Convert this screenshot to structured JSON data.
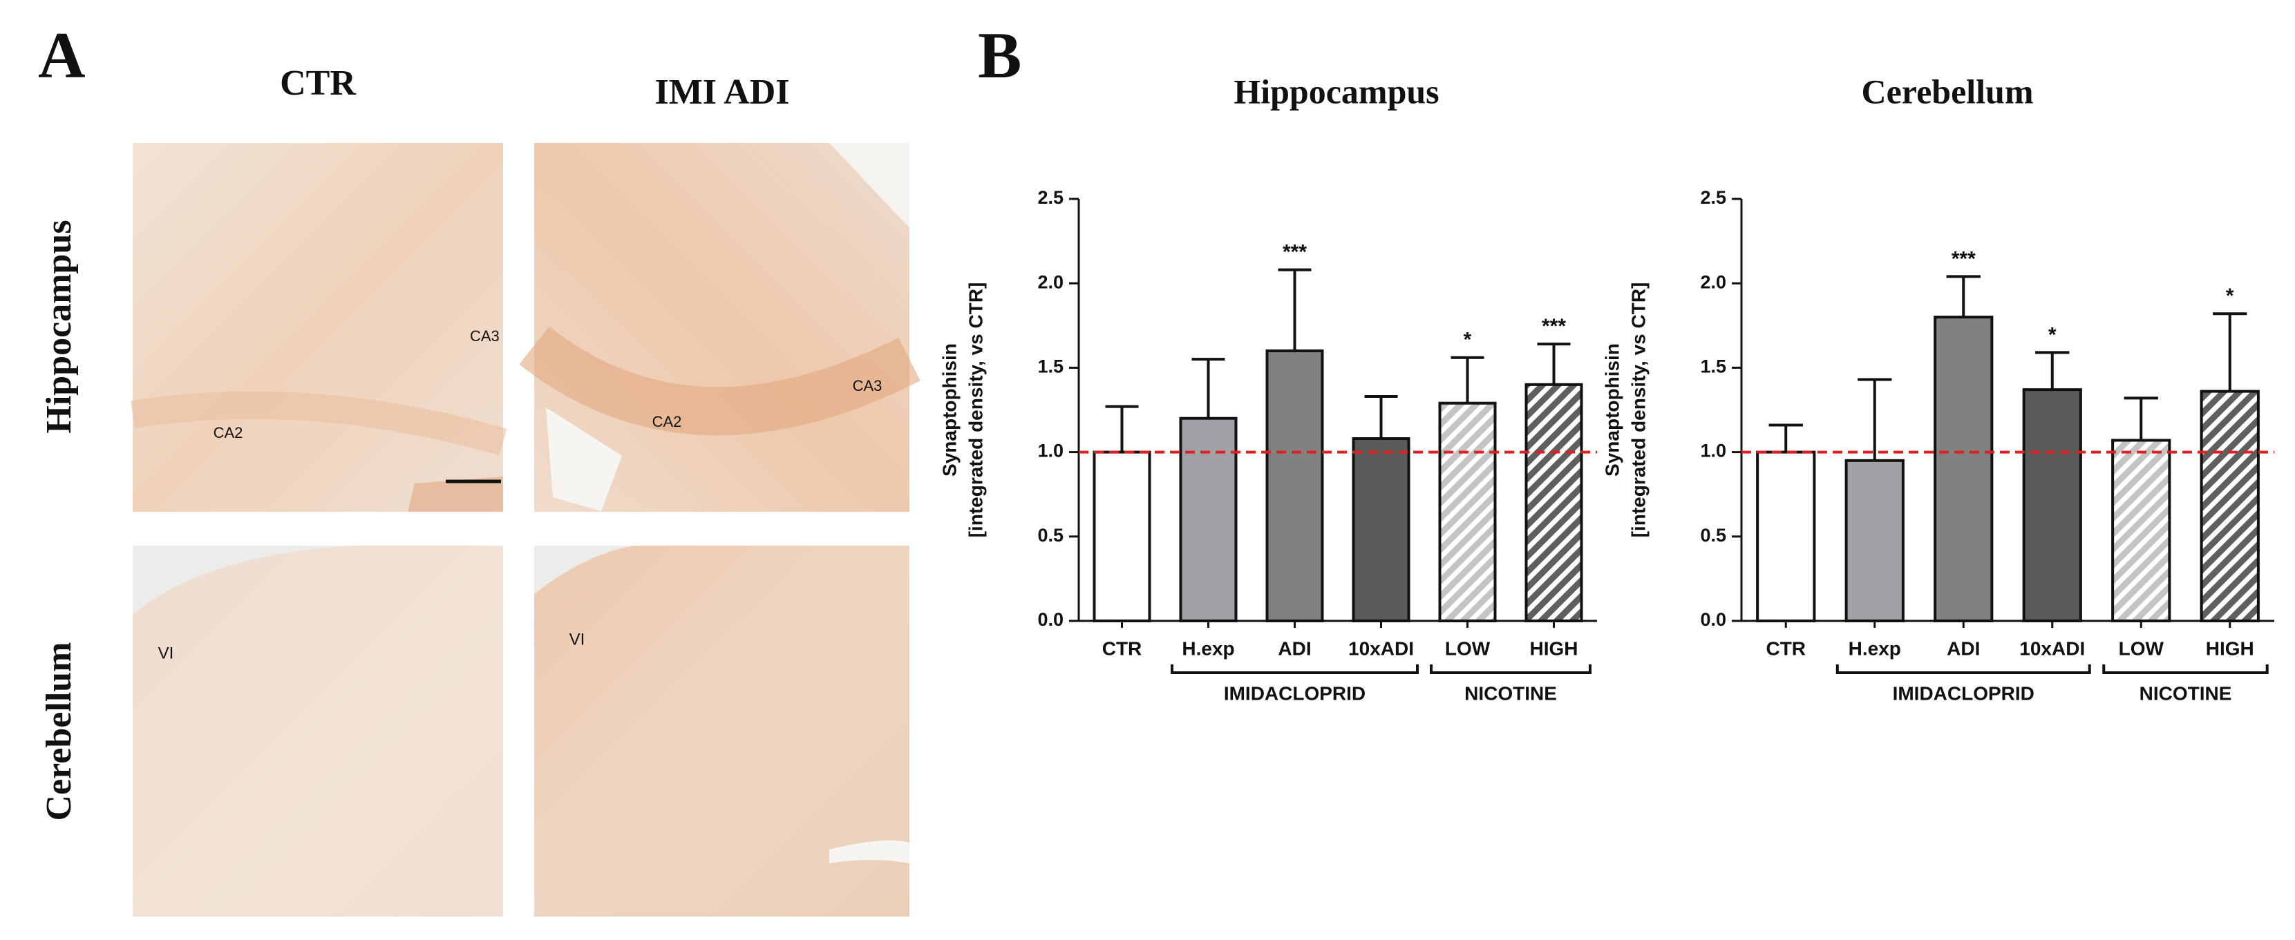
{
  "panel_a": {
    "label": "A",
    "columns": [
      "CTR",
      "IMI ADI"
    ],
    "rows": [
      "Hippocampus",
      "Cerebellum"
    ],
    "annotations": {
      "ctr_hippocampus": [
        "CA3",
        "CA2"
      ],
      "imi_hippocampus": [
        "CA2",
        "CA3"
      ],
      "ctr_cerebellum": [
        "VI"
      ],
      "imi_cerebellum": [
        "VI"
      ]
    }
  },
  "panel_b": {
    "label": "B"
  },
  "chart_data": [
    {
      "type": "bar",
      "title": "Hippocampus",
      "ylabel": [
        "Synaptophisin",
        "[integrated density, vs CTR]"
      ],
      "categories": [
        "CTR",
        "H.exp",
        "ADI",
        "10xADI",
        "LOW",
        "HIGH"
      ],
      "values": [
        1.0,
        1.2,
        1.6,
        1.08,
        1.29,
        1.4
      ],
      "errors": [
        0.27,
        0.35,
        0.48,
        0.25,
        0.27,
        0.24
      ],
      "significance": [
        null,
        null,
        "***",
        null,
        "*",
        "***"
      ],
      "colors": [
        "#ffffff",
        "#a2a2a6",
        "#818181",
        "#5b5b5b",
        "#c4c4c4",
        "#5f5f5f"
      ],
      "hatched": [
        false,
        false,
        false,
        false,
        true,
        true
      ],
      "groups": [
        {
          "label": "IMIDACLOPRID",
          "categories": [
            "H.exp",
            "ADI",
            "10xADI"
          ]
        },
        {
          "label": "NICOTINE",
          "categories": [
            "LOW",
            "HIGH"
          ]
        }
      ],
      "reference_line": {
        "value": 1,
        "color": "#e02020"
      },
      "ylim": [
        0,
        2.5
      ],
      "yticks": [
        {
          "value": 0,
          "label": "0.0"
        },
        0.5,
        {
          "value": 1,
          "label": "1.0"
        },
        1.5,
        {
          "value": 2,
          "label": "2.0"
        },
        2.5
      ]
    },
    {
      "type": "bar",
      "title": "Cerebellum",
      "ylabel": [
        "Synaptophisin",
        "[integrated density, vs CTR]"
      ],
      "categories": [
        "CTR",
        "H.exp",
        "ADI",
        "10xADI",
        "LOW",
        "HIGH"
      ],
      "values": [
        1.0,
        0.95,
        1.8,
        1.37,
        1.07,
        1.36
      ],
      "errors": [
        0.16,
        0.48,
        0.24,
        0.22,
        0.25,
        0.46
      ],
      "significance": [
        null,
        null,
        "***",
        "*",
        null,
        "*"
      ],
      "colors": [
        "#ffffff",
        "#a2a2a6",
        "#818181",
        "#5b5b5b",
        "#c4c4c4",
        "#5f5f5f"
      ],
      "hatched": [
        false,
        false,
        false,
        false,
        true,
        true
      ],
      "groups": [
        {
          "label": "IMIDACLOPRID",
          "categories": [
            "H.exp",
            "ADI",
            "10xADI"
          ]
        },
        {
          "label": "NICOTINE",
          "categories": [
            "LOW",
            "HIGH"
          ]
        }
      ],
      "reference_line": {
        "value": 1,
        "color": "#e02020"
      },
      "ylim": [
        0,
        2.5
      ],
      "yticks": [
        {
          "value": 0,
          "label": "0.0"
        },
        0.5,
        {
          "value": 1,
          "label": "1.0"
        },
        1.5,
        {
          "value": 2,
          "label": "2.0"
        },
        2.5
      ]
    }
  ]
}
